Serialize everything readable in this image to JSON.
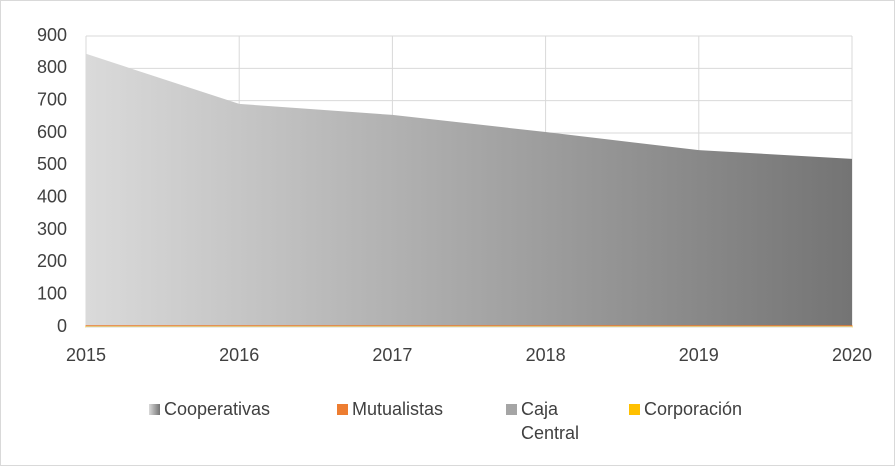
{
  "chart_data": {
    "type": "area",
    "categories": [
      "2015",
      "2016",
      "2017",
      "2018",
      "2019",
      "2020"
    ],
    "series": [
      {
        "name": "Cooperativas",
        "color": "#a6a6a6",
        "gradient": [
          "#dadada",
          "#747474"
        ],
        "values": [
          845,
          690,
          656,
          603,
          547,
          520
        ]
      },
      {
        "name": "Mutualistas",
        "color": "#ed7d31",
        "values": [
          4,
          4,
          4,
          4,
          4,
          4
        ]
      },
      {
        "name": "Caja Central",
        "color": "#a5a5a5",
        "values": [
          1,
          1,
          1,
          1,
          1,
          1
        ]
      },
      {
        "name": "Corporación",
        "color": "#ffc000",
        "values": [
          1,
          1,
          1,
          1,
          1,
          1
        ]
      }
    ],
    "ylim": [
      0,
      900
    ],
    "yticks": [
      0,
      100,
      200,
      300,
      400,
      500,
      600,
      700,
      800,
      900
    ],
    "grid": true,
    "legend": "bottom"
  }
}
